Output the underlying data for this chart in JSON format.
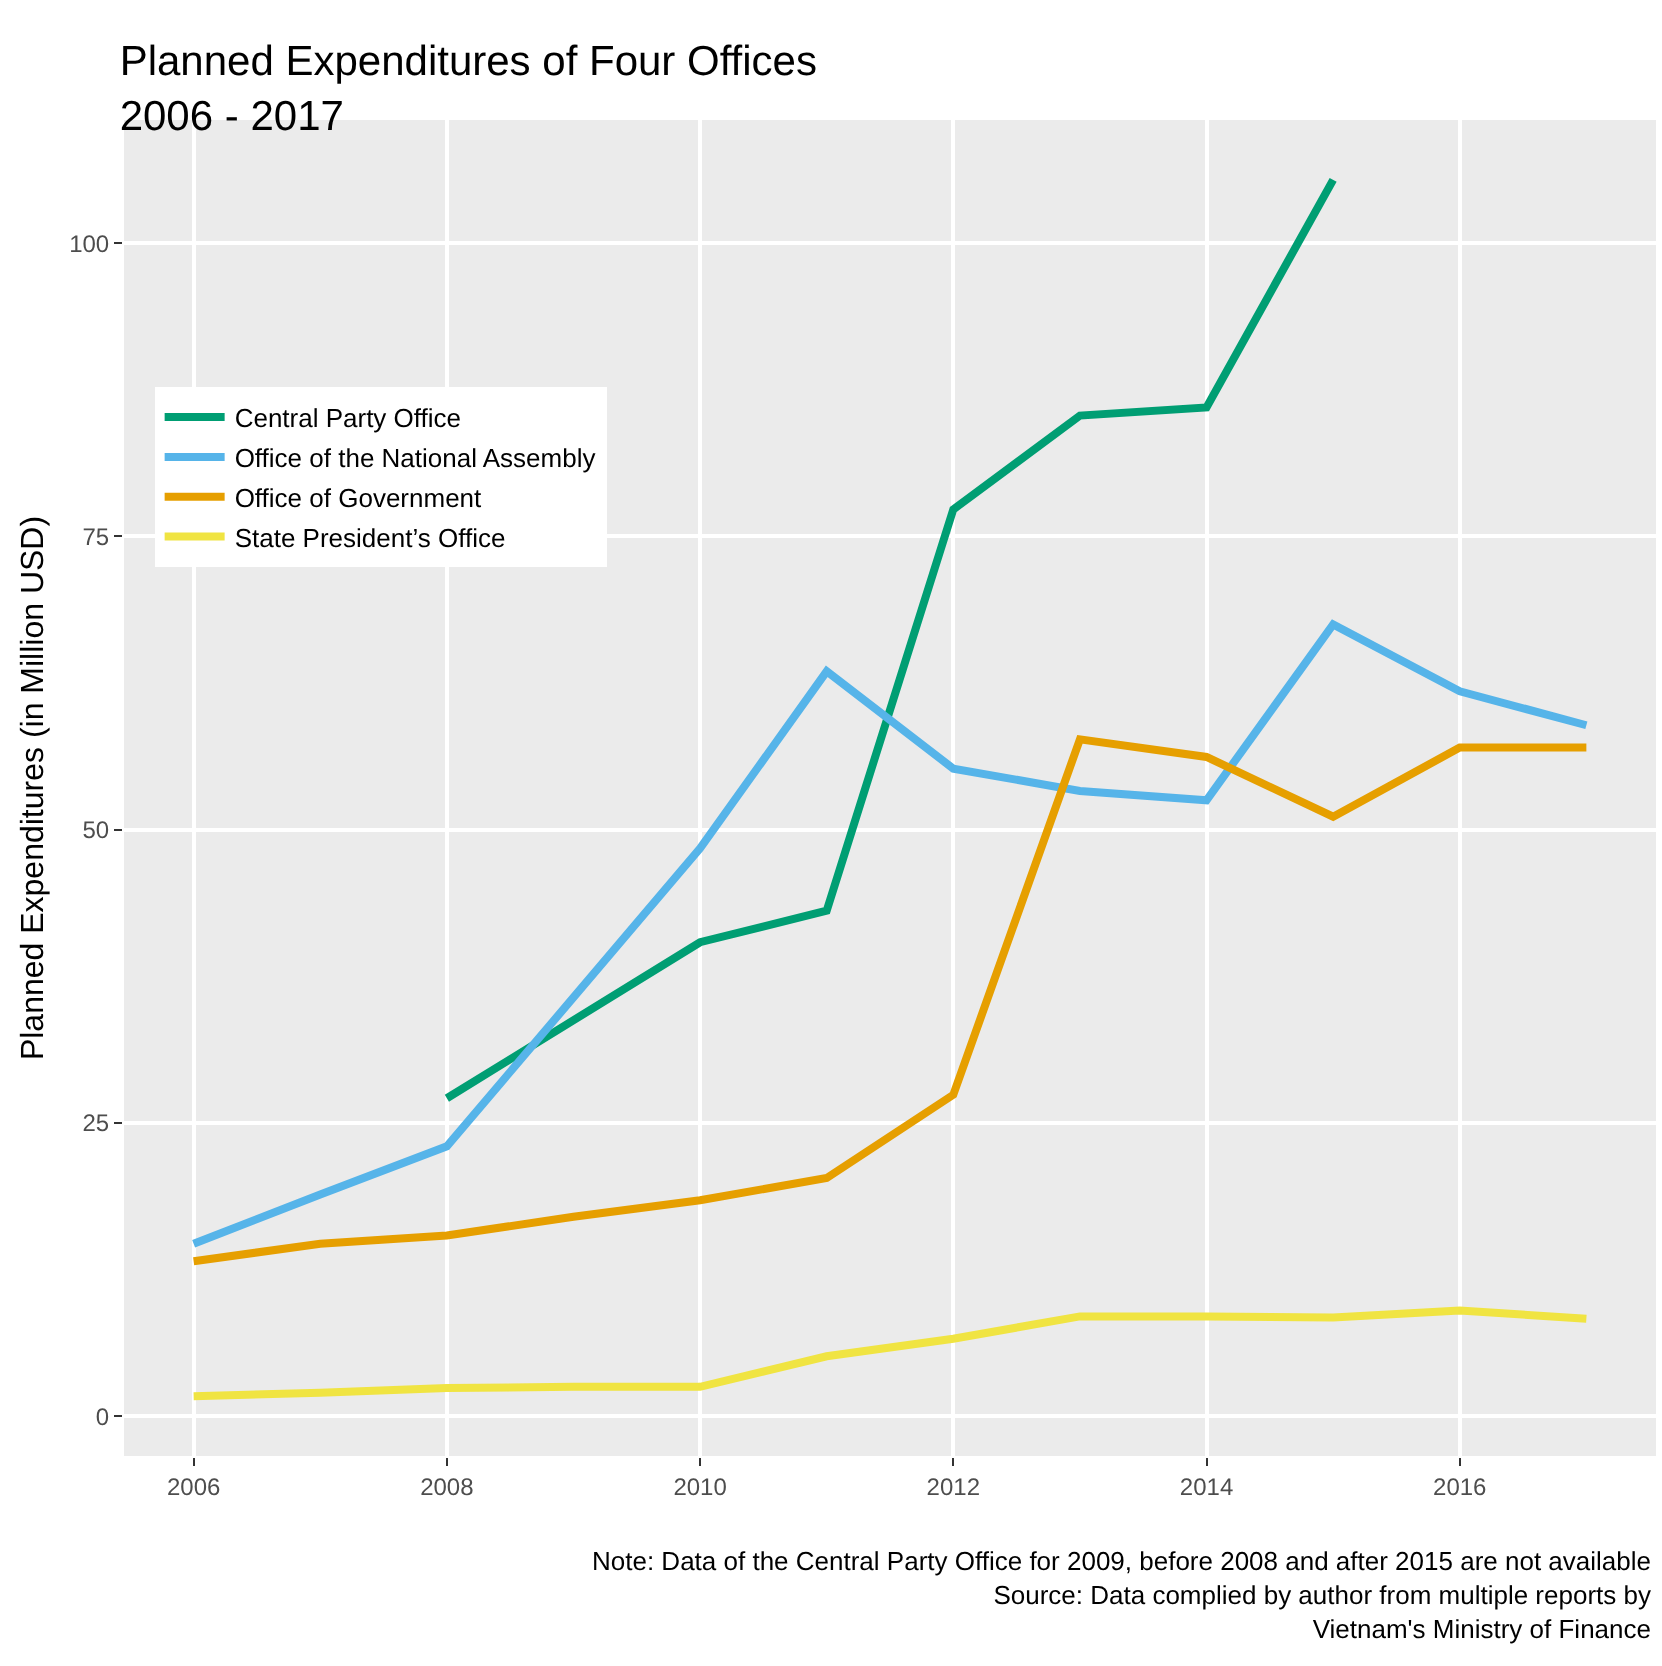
{
  "chart_data": {
    "type": "line",
    "title": "Planned Expenditures of Four Offices",
    "subtitle": "2006 - 2017",
    "ylabel": "Planned Expenditures (in Million USD)",
    "x": [
      2006,
      2007,
      2008,
      2009,
      2010,
      2011,
      2012,
      2013,
      2014,
      2015,
      2016,
      2017
    ],
    "series": [
      {
        "name": "Central Party Office",
        "color": "#009e73",
        "x": [
          2008,
          2010,
          2011,
          2012,
          2013,
          2014,
          2015
        ],
        "values": [
          27.1,
          40.4,
          43.1,
          77.3,
          85.3,
          86,
          105.4
        ]
      },
      {
        "name": "Office of the National Assembly",
        "color": "#56b4e9",
        "values": [
          14.7,
          18.9,
          23,
          35.7,
          48.4,
          63.5,
          55.2,
          53.3,
          52.5,
          67.5,
          61.8,
          58.9
        ]
      },
      {
        "name": "Office of Government",
        "color": "#e69f00",
        "values": [
          13.2,
          14.7,
          15.4,
          17,
          18.4,
          20.3,
          27.4,
          57.7,
          56.2,
          51.1,
          57,
          57
        ]
      },
      {
        "name": "State President’s Office",
        "color": "#f0e442",
        "values": [
          1.7,
          2,
          2.4,
          2.5,
          2.5,
          5.1,
          6.6,
          8.5,
          8.5,
          8.4,
          9,
          8.3
        ]
      }
    ],
    "xlim": [
      2005.45,
      2017.55
    ],
    "xticks": [
      2006,
      2008,
      2010,
      2012,
      2014,
      2016
    ],
    "ylim": [
      -3.4,
      110.5
    ],
    "yticks": [
      0,
      25,
      50,
      75,
      100
    ],
    "grid": true,
    "legend": "top left",
    "marker": "none",
    "line_style": "solid",
    "annotations": [
      "Note: Data of the Central Party Office for 2009, before 2008 and after 2015 are not available",
      "Source: Data complied by author from multiple reports by",
      "Vietnam's Ministry of Finance"
    ]
  }
}
